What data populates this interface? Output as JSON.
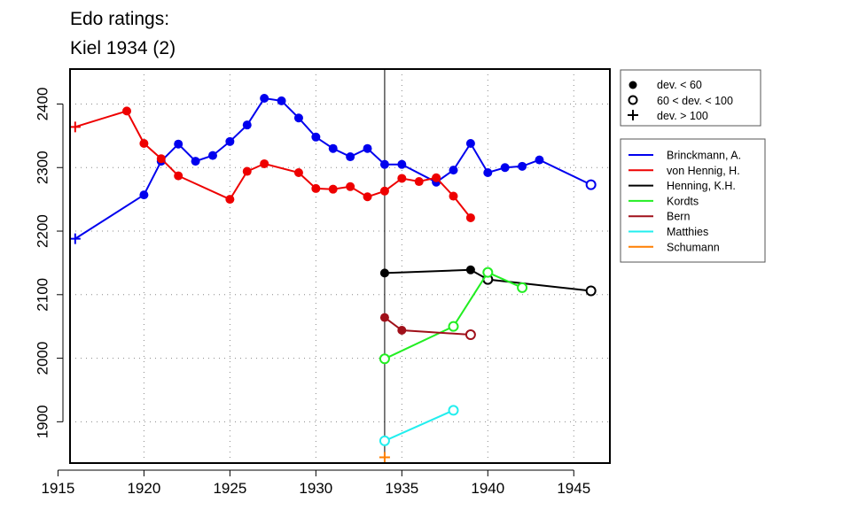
{
  "chart_data": {
    "type": "line",
    "title_lines": [
      "Edo ratings:",
      "Kiel 1934 (2)"
    ],
    "xlabel": "",
    "ylabel": "",
    "xlim": [
      1915.7,
      1947.1
    ],
    "ylim": [
      1835,
      2455
    ],
    "x_ticks": [
      1915,
      1920,
      1925,
      1930,
      1935,
      1940,
      1945
    ],
    "y_ticks": [
      1900,
      2000,
      2100,
      2200,
      2300,
      2400
    ],
    "grid": "dotted",
    "reference_line_x": 1934,
    "marker_legend": [
      {
        "label": "dev. < 60",
        "marker": "filled"
      },
      {
        "label": "60 < dev. < 100",
        "marker": "open"
      },
      {
        "label": "dev. > 100",
        "marker": "plus"
      }
    ],
    "series": [
      {
        "name": "Brinckmann, A.",
        "color": "#0000ee",
        "points": [
          {
            "x": 1916,
            "y": 2188,
            "m": "plus"
          },
          {
            "x": 1920,
            "y": 2257,
            "m": "filled"
          },
          {
            "x": 1921,
            "y": 2310,
            "m": "filled"
          },
          {
            "x": 1922,
            "y": 2337,
            "m": "filled"
          },
          {
            "x": 1923,
            "y": 2310,
            "m": "filled"
          },
          {
            "x": 1924,
            "y": 2319,
            "m": "filled"
          },
          {
            "x": 1925,
            "y": 2341,
            "m": "filled"
          },
          {
            "x": 1926,
            "y": 2367,
            "m": "filled"
          },
          {
            "x": 1927,
            "y": 2409,
            "m": "filled"
          },
          {
            "x": 1928,
            "y": 2405,
            "m": "filled"
          },
          {
            "x": 1929,
            "y": 2378,
            "m": "filled"
          },
          {
            "x": 1930,
            "y": 2348,
            "m": "filled"
          },
          {
            "x": 1931,
            "y": 2330,
            "m": "filled"
          },
          {
            "x": 1932,
            "y": 2317,
            "m": "filled"
          },
          {
            "x": 1933,
            "y": 2330,
            "m": "filled"
          },
          {
            "x": 1934,
            "y": 2305,
            "m": "filled"
          },
          {
            "x": 1935,
            "y": 2305,
            "m": "filled"
          },
          {
            "x": 1937,
            "y": 2277,
            "m": "filled"
          },
          {
            "x": 1938,
            "y": 2296,
            "m": "filled"
          },
          {
            "x": 1939,
            "y": 2338,
            "m": "filled"
          },
          {
            "x": 1940,
            "y": 2292,
            "m": "filled"
          },
          {
            "x": 1941,
            "y": 2300,
            "m": "filled"
          },
          {
            "x": 1942,
            "y": 2302,
            "m": "filled"
          },
          {
            "x": 1943,
            "y": 2312,
            "m": "filled"
          },
          {
            "x": 1946,
            "y": 2273,
            "m": "open"
          }
        ]
      },
      {
        "name": "von Hennig, H.",
        "color": "#ee0000",
        "points": [
          {
            "x": 1916,
            "y": 2364,
            "m": "plus"
          },
          {
            "x": 1919,
            "y": 2389,
            "m": "filled"
          },
          {
            "x": 1920,
            "y": 2338,
            "m": "filled"
          },
          {
            "x": 1921,
            "y": 2314,
            "m": "filled"
          },
          {
            "x": 1922,
            "y": 2287,
            "m": "filled"
          },
          {
            "x": 1925,
            "y": 2250,
            "m": "filled"
          },
          {
            "x": 1926,
            "y": 2294,
            "m": "filled"
          },
          {
            "x": 1927,
            "y": 2306,
            "m": "filled"
          },
          {
            "x": 1929,
            "y": 2292,
            "m": "filled"
          },
          {
            "x": 1930,
            "y": 2267,
            "m": "filled"
          },
          {
            "x": 1931,
            "y": 2266,
            "m": "filled"
          },
          {
            "x": 1932,
            "y": 2270,
            "m": "filled"
          },
          {
            "x": 1933,
            "y": 2254,
            "m": "filled"
          },
          {
            "x": 1934,
            "y": 2263,
            "m": "filled"
          },
          {
            "x": 1935,
            "y": 2283,
            "m": "filled"
          },
          {
            "x": 1936,
            "y": 2278,
            "m": "filled"
          },
          {
            "x": 1937,
            "y": 2284,
            "m": "filled"
          },
          {
            "x": 1938,
            "y": 2255,
            "m": "filled"
          },
          {
            "x": 1939,
            "y": 2221,
            "m": "filled"
          }
        ]
      },
      {
        "name": "Henning, K.H.",
        "color": "#000000",
        "points": [
          {
            "x": 1934,
            "y": 2134,
            "m": "filled"
          },
          {
            "x": 1939,
            "y": 2139,
            "m": "filled"
          },
          {
            "x": 1940,
            "y": 2124,
            "m": "open"
          },
          {
            "x": 1946,
            "y": 2106,
            "m": "open"
          }
        ]
      },
      {
        "name": "Kordts",
        "color": "#22ee22",
        "points": [
          {
            "x": 1934,
            "y": 1999,
            "m": "open"
          },
          {
            "x": 1938,
            "y": 2050,
            "m": "open"
          },
          {
            "x": 1940,
            "y": 2135,
            "m": "open"
          },
          {
            "x": 1942,
            "y": 2111,
            "m": "open"
          }
        ]
      },
      {
        "name": "Bern",
        "color": "#a0101a",
        "points": [
          {
            "x": 1934,
            "y": 2064,
            "m": "filled"
          },
          {
            "x": 1935,
            "y": 2044,
            "m": "filled"
          },
          {
            "x": 1939,
            "y": 2037,
            "m": "open"
          }
        ]
      },
      {
        "name": "Matthies",
        "color": "#22eeee",
        "points": [
          {
            "x": 1934,
            "y": 1870,
            "m": "open"
          },
          {
            "x": 1938,
            "y": 1918,
            "m": "open"
          }
        ]
      },
      {
        "name": "Schumann",
        "color": "#ff7f00",
        "points": [
          {
            "x": 1934,
            "y": 1844,
            "m": "plus"
          }
        ]
      }
    ]
  }
}
